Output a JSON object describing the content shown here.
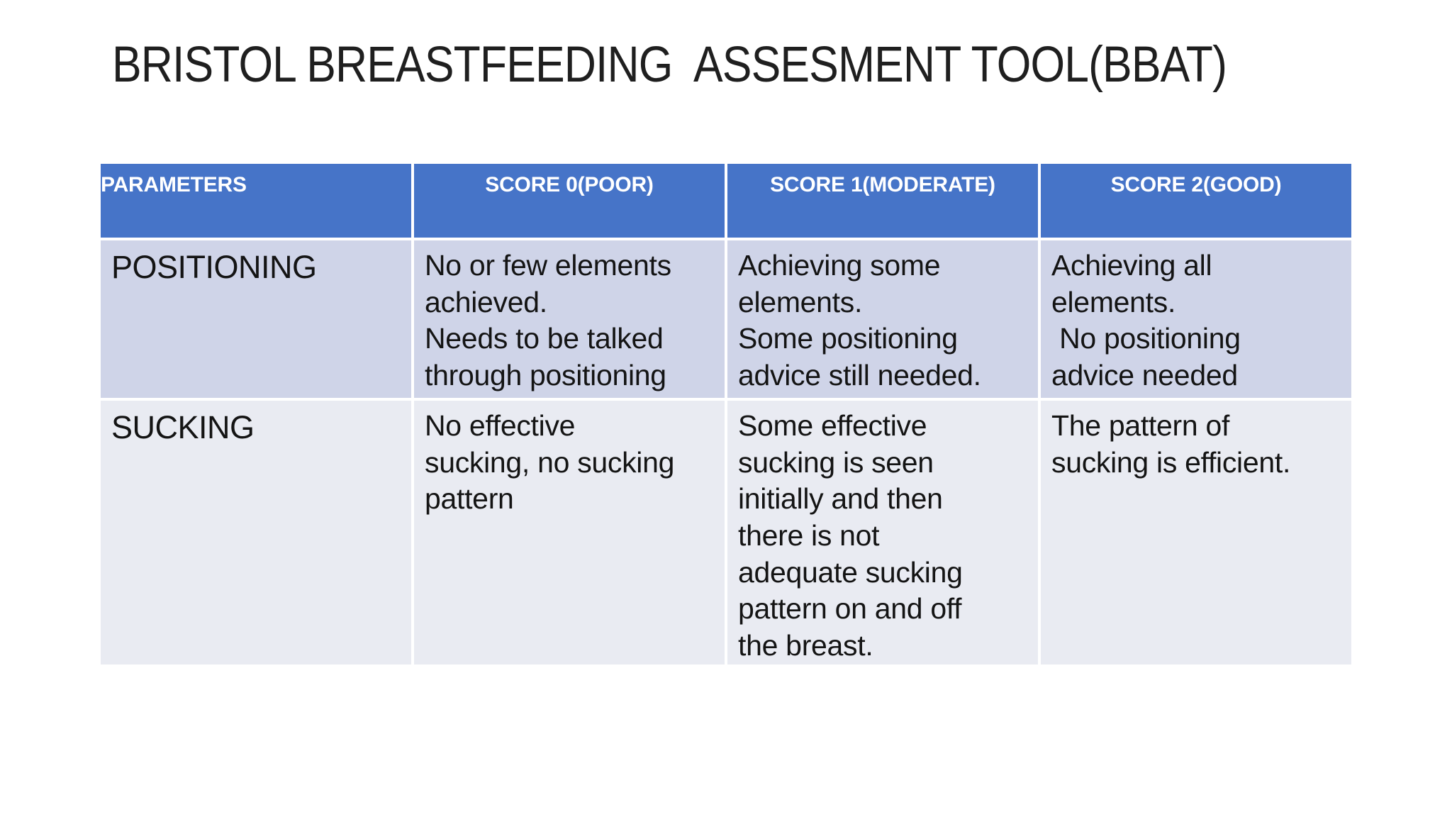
{
  "slide": {
    "title": "BRISTOL BREASTFEEDING  ASSESMENT TOOL(BBAT)"
  },
  "colors": {
    "header_bg": "#4674C8",
    "header_text": "#FFFFFF",
    "row_odd_bg": "#CFD4E8",
    "row_even_bg": "#E9EBF2",
    "grid_gap": "#FFFFFF",
    "title_text": "#1F1F1F",
    "cell_text": "#141414"
  },
  "table": {
    "headers": [
      "PARAMETERS",
      "SCORE 0(POOR)",
      "SCORE 1(MODERATE)",
      "SCORE 2(GOOD)"
    ],
    "rows": [
      {
        "parameter": "POSITIONING",
        "score0": "No or few elements\nachieved.\nNeeds to be talked\nthrough positioning",
        "score1": "Achieving some\nelements.\nSome positioning\nadvice still needed.",
        "score2": "Achieving all\nelements.\n No positioning\nadvice needed"
      },
      {
        "parameter": "SUCKING",
        "score0": "No effective\nsucking, no sucking\npattern",
        "score1": "Some effective\nsucking is seen\ninitially and then\nthere is not\nadequate sucking\npattern on and off\nthe breast.",
        "score2": "The pattern of\nsucking is efficient."
      }
    ]
  }
}
